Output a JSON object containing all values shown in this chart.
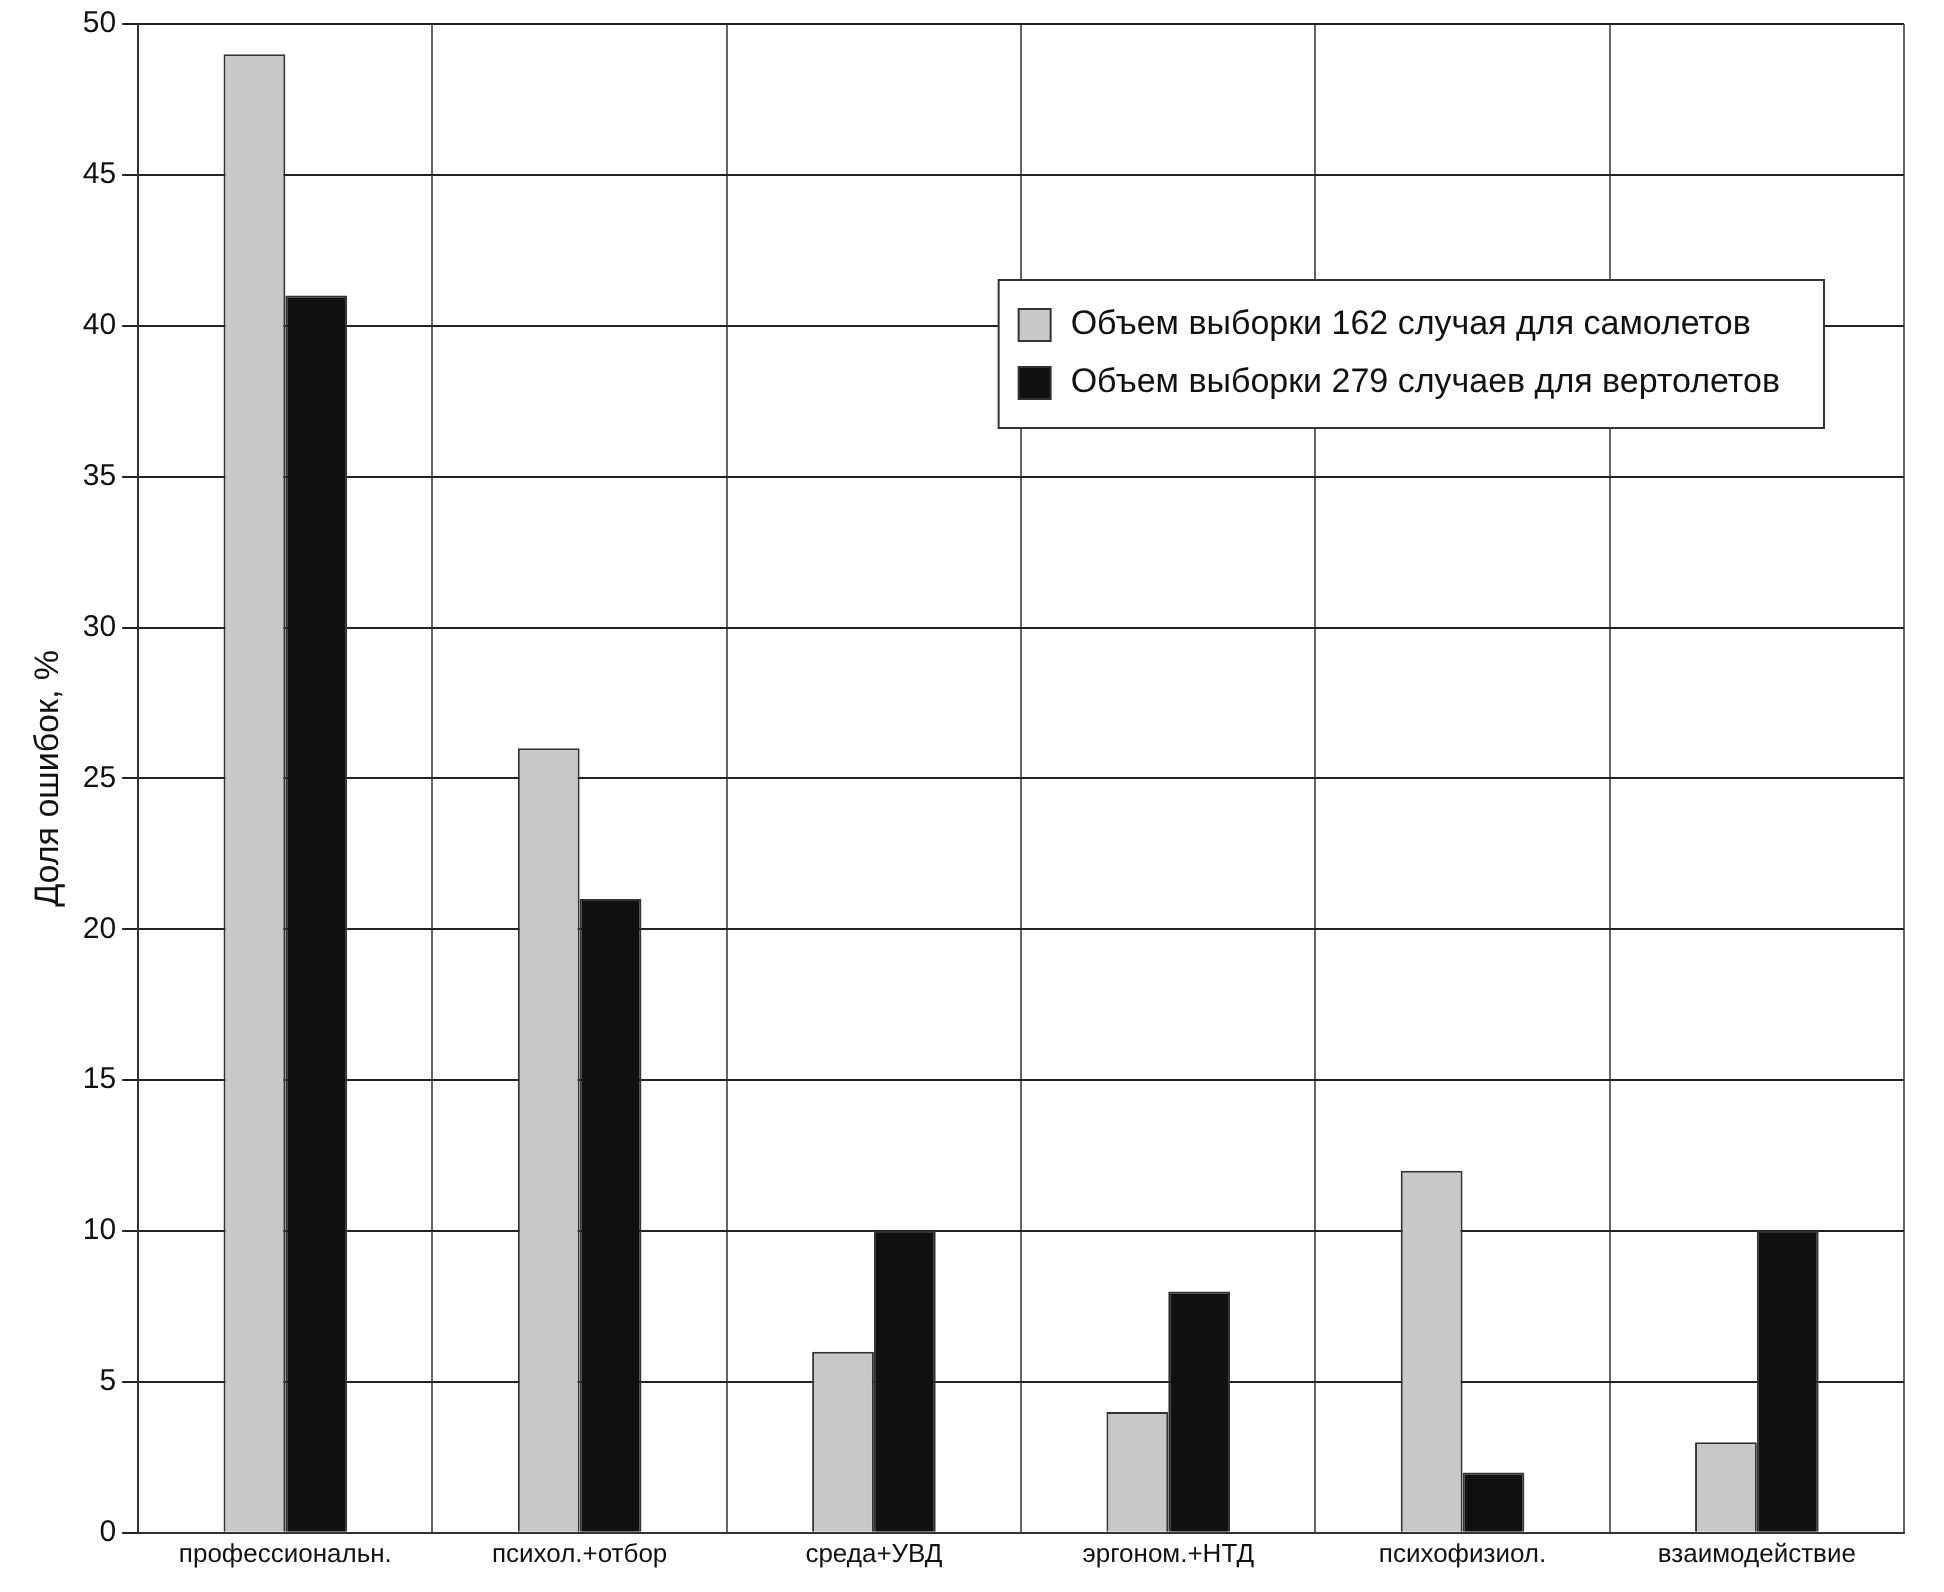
{
  "chart_data": {
    "type": "bar",
    "ylabel": "Доля ошибок, %",
    "categories": [
      "профессиональн.",
      "психол.+отбор",
      "среда+УВД",
      "эргоном.+НТД",
      "психофизиол.",
      "взаимодействие"
    ],
    "series": [
      {
        "name": "Объем выборки 162 случая для самолетов",
        "color": "#c8c8c8",
        "values": [
          49,
          26,
          6,
          4,
          12,
          3
        ]
      },
      {
        "name": "Объем выборки 279 случаев для вертолетов",
        "color": "#111111",
        "values": [
          41,
          21,
          10,
          8,
          2,
          10
        ]
      }
    ],
    "ylim": [
      0,
      50
    ],
    "yticks": [
      0,
      5,
      10,
      15,
      20,
      25,
      30,
      35,
      40,
      45,
      50
    ],
    "grid": true,
    "legend": "top right"
  }
}
